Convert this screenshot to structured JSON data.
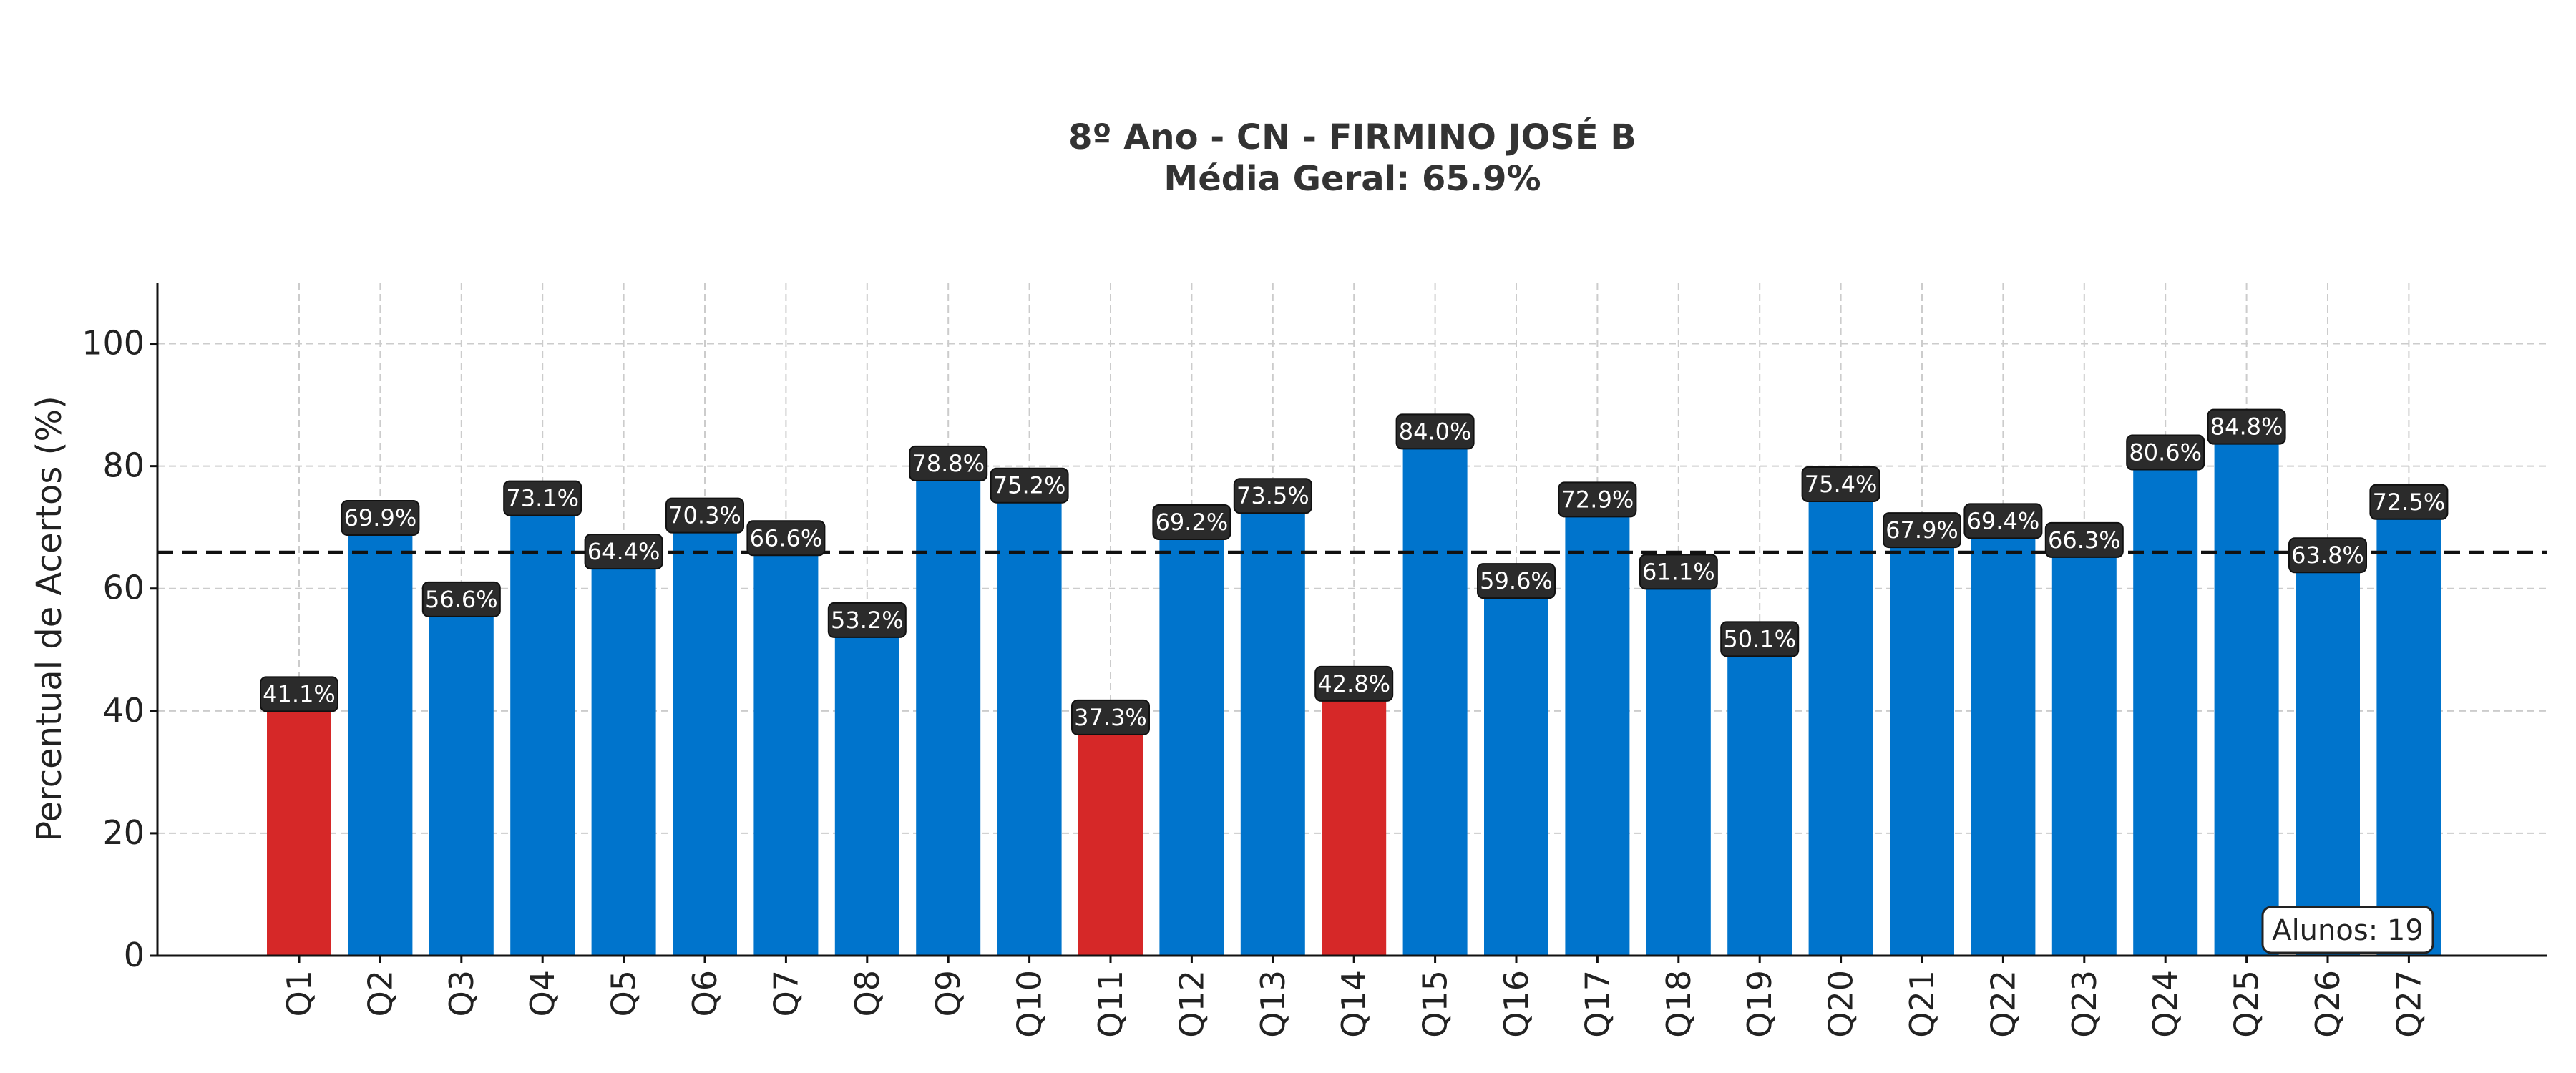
{
  "chart_data": {
    "type": "bar",
    "title": "8º Ano - CN - FIRMINO JOSÉ B",
    "subtitle": "Média Geral: 65.9%",
    "xlabel": "",
    "ylabel": "Percentual de Acertos (%)",
    "ylim": [
      0,
      110
    ],
    "yticks": [
      0,
      20,
      40,
      60,
      80,
      100
    ],
    "grid": true,
    "categories": [
      "Q1",
      "Q2",
      "Q3",
      "Q4",
      "Q5",
      "Q6",
      "Q7",
      "Q8",
      "Q9",
      "Q10",
      "Q11",
      "Q12",
      "Q13",
      "Q14",
      "Q15",
      "Q16",
      "Q17",
      "Q18",
      "Q19",
      "Q20",
      "Q21",
      "Q22",
      "Q23",
      "Q24",
      "Q25",
      "Q26",
      "Q27"
    ],
    "values": [
      41.1,
      69.9,
      56.6,
      73.1,
      64.4,
      70.3,
      66.6,
      53.2,
      78.8,
      75.2,
      37.3,
      69.2,
      73.5,
      42.8,
      84.0,
      59.6,
      72.9,
      61.1,
      50.1,
      75.4,
      67.9,
      69.4,
      66.3,
      80.6,
      84.8,
      63.8,
      72.5
    ],
    "data_labels": [
      "41.1%",
      "69.9%",
      "56.6%",
      "73.1%",
      "64.4%",
      "70.3%",
      "66.6%",
      "53.2%",
      "78.8%",
      "75.2%",
      "37.3%",
      "69.2%",
      "73.5%",
      "42.8%",
      "84.0%",
      "59.6%",
      "72.9%",
      "61.1%",
      "50.1%",
      "75.4%",
      "67.9%",
      "69.4%",
      "66.3%",
      "80.6%",
      "84.8%",
      "63.8%",
      "72.5%"
    ],
    "reference_line": {
      "value": 65.9,
      "style": "dashed",
      "color": "#111111"
    },
    "annotation": "Alunos: 19",
    "colors": {
      "normal": "#0074cc",
      "low": "#d62828",
      "label_bg": "#2b2b2b",
      "label_text": "#ffffff",
      "grid": "#cccccc"
    },
    "low_threshold": 50
  }
}
